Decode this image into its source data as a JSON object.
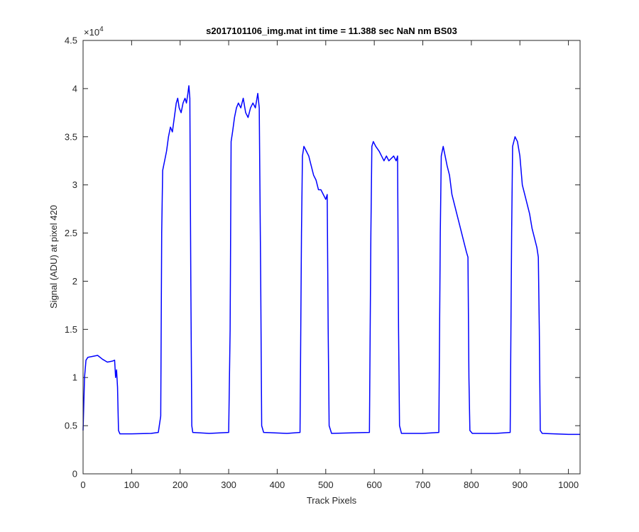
{
  "chart_data": {
    "type": "line",
    "title": "s2017101106_img.mat int time = 11.388 sec  NaN nm BS03",
    "x_label": "Track Pixels",
    "y_label": "Signal (ADU) at pixel 420",
    "y_scale_label": {
      "base": "×10",
      "exponent": "4"
    },
    "xlim": [
      0,
      1024
    ],
    "ylim": [
      0,
      4.5
    ],
    "xticks": [
      0,
      100,
      200,
      300,
      400,
      500,
      600,
      700,
      800,
      900,
      1000
    ],
    "yticks": [
      0,
      0.5,
      1,
      1.5,
      2,
      2.5,
      3,
      3.5,
      4,
      4.5
    ],
    "grid": false,
    "series": [
      {
        "color": "#0000ff",
        "x": [
          0,
          3,
          6,
          10,
          20,
          30,
          40,
          50,
          60,
          65,
          67,
          69,
          71,
          73,
          76,
          100,
          140,
          155,
          160,
          162,
          164,
          168,
          172,
          176,
          180,
          184,
          188,
          192,
          195,
          198,
          202,
          206,
          210,
          213,
          216,
          218,
          220,
          222,
          224,
          226,
          260,
          300,
          303,
          305,
          308,
          312,
          316,
          320,
          325,
          330,
          335,
          340,
          345,
          350,
          355,
          360,
          363,
          366,
          368,
          372,
          420,
          447,
          450,
          452,
          455,
          460,
          465,
          470,
          475,
          480,
          485,
          490,
          495,
          500,
          503,
          505,
          507,
          512,
          590,
          593,
          595,
          598,
          603,
          610,
          615,
          620,
          625,
          630,
          640,
          645,
          648,
          650,
          652,
          656,
          700,
          733,
          736,
          738,
          742,
          746,
          750,
          755,
          760,
          765,
          770,
          775,
          780,
          785,
          790,
          793,
          795,
          797,
          802,
          850,
          880,
          883,
          885,
          890,
          895,
          900,
          905,
          910,
          915,
          920,
          925,
          930,
          935,
          938,
          940,
          942,
          946,
          1000,
          1024
        ],
        "values": [
          0.45,
          1.0,
          1.18,
          1.21,
          1.22,
          1.23,
          1.19,
          1.16,
          1.17,
          1.18,
          1.0,
          1.08,
          0.9,
          0.45,
          0.415,
          0.415,
          0.42,
          0.43,
          0.6,
          2.5,
          3.15,
          3.25,
          3.35,
          3.5,
          3.6,
          3.55,
          3.7,
          3.85,
          3.9,
          3.8,
          3.75,
          3.85,
          3.9,
          3.85,
          3.95,
          4.03,
          3.9,
          2.0,
          0.5,
          0.43,
          0.42,
          0.43,
          1.5,
          3.45,
          3.55,
          3.7,
          3.8,
          3.85,
          3.8,
          3.9,
          3.75,
          3.7,
          3.8,
          3.85,
          3.8,
          3.95,
          3.8,
          2.0,
          0.5,
          0.43,
          0.42,
          0.43,
          2.5,
          3.3,
          3.4,
          3.35,
          3.3,
          3.2,
          3.1,
          3.05,
          2.95,
          2.95,
          2.9,
          2.85,
          2.9,
          1.5,
          0.5,
          0.42,
          0.43,
          2.5,
          3.4,
          3.45,
          3.4,
          3.35,
          3.3,
          3.25,
          3.3,
          3.25,
          3.3,
          3.25,
          3.3,
          1.5,
          0.5,
          0.42,
          0.42,
          0.43,
          2.5,
          3.3,
          3.4,
          3.3,
          3.2,
          3.1,
          2.9,
          2.8,
          2.7,
          2.6,
          2.5,
          2.4,
          2.3,
          2.25,
          1.0,
          0.45,
          0.42,
          0.42,
          0.43,
          2.5,
          3.4,
          3.5,
          3.45,
          3.3,
          3.0,
          2.9,
          2.8,
          2.7,
          2.55,
          2.45,
          2.35,
          2.25,
          1.5,
          0.45,
          0.42,
          0.41,
          0.41
        ]
      }
    ]
  }
}
